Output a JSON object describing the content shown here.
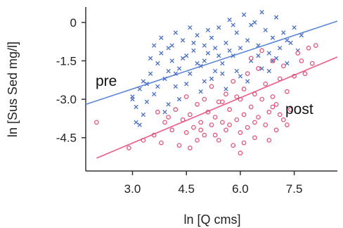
{
  "chart_data": {
    "type": "scatter",
    "title": "",
    "xlabel": "ln [Q  cms]",
    "ylabel": "ln [Sus Sed mg/l]",
    "xlim": [
      1.7,
      8.7
    ],
    "ylim": [
      -5.8,
      0.6
    ],
    "x_ticks": [
      3.0,
      4.5,
      6.0,
      7.5
    ],
    "x_tick_labels": [
      "3.0",
      "4.5",
      "6.0",
      "7.5"
    ],
    "y_ticks": [
      0,
      -1.5,
      -3.0,
      -4.5
    ],
    "y_tick_labels": [
      "0",
      "-1.5",
      "-3.0",
      "-4.5"
    ],
    "grid": false,
    "legend": "none",
    "series": [
      {
        "name": "pre",
        "marker": "x",
        "color": "#4a6fc4",
        "fit_line": {
          "color": "#5b86d6",
          "x": [
            1.7,
            8.7
          ],
          "y": [
            -3.2,
            0.05
          ]
        },
        "points": [
          [
            3.0,
            -2.9
          ],
          [
            3.1,
            -3.3
          ],
          [
            3.2,
            -2.6
          ],
          [
            3.3,
            -3.6
          ],
          [
            3.1,
            -3.9
          ],
          [
            3.2,
            -4.0
          ],
          [
            3.4,
            -3.1
          ],
          [
            3.3,
            -2.3
          ],
          [
            3.5,
            -2.0
          ],
          [
            3.0,
            -3.0
          ],
          [
            3.6,
            -2.8
          ],
          [
            3.7,
            -1.6
          ],
          [
            3.8,
            -1.2
          ],
          [
            3.6,
            -0.9
          ],
          [
            3.9,
            -2.2
          ],
          [
            4.0,
            -1.0
          ],
          [
            3.8,
            -0.6
          ],
          [
            4.1,
            -1.5
          ],
          [
            4.2,
            -2.5
          ],
          [
            4.0,
            -3.2
          ],
          [
            3.9,
            -3.5
          ],
          [
            4.3,
            -1.8
          ],
          [
            4.4,
            -0.7
          ],
          [
            4.5,
            -1.3
          ],
          [
            4.2,
            -0.4
          ],
          [
            4.6,
            -2.0
          ],
          [
            4.7,
            -1.1
          ],
          [
            4.8,
            -0.5
          ],
          [
            4.5,
            -2.4
          ],
          [
            4.9,
            -1.7
          ],
          [
            5.0,
            -0.9
          ],
          [
            5.1,
            -0.3
          ],
          [
            5.0,
            -1.5
          ],
          [
            5.2,
            -2.2
          ],
          [
            5.3,
            -1.0
          ],
          [
            5.4,
            -0.2
          ],
          [
            5.2,
            -0.6
          ],
          [
            5.5,
            -1.6
          ],
          [
            5.6,
            -0.8
          ],
          [
            5.7,
            0.1
          ],
          [
            5.5,
            -2.0
          ],
          [
            5.8,
            -1.3
          ],
          [
            5.9,
            -0.4
          ],
          [
            6.0,
            -1.0
          ],
          [
            6.1,
            0.3
          ],
          [
            5.9,
            -1.9
          ],
          [
            6.2,
            -0.7
          ],
          [
            6.3,
            -1.5
          ],
          [
            6.4,
            0.0
          ],
          [
            6.5,
            -0.9
          ],
          [
            6.6,
            -1.8
          ],
          [
            6.7,
            -0.3
          ],
          [
            6.8,
            -1.2
          ],
          [
            6.9,
            -0.6
          ],
          [
            7.0,
            0.2
          ],
          [
            7.1,
            -1.0
          ],
          [
            7.2,
            -0.4
          ],
          [
            7.3,
            -1.6
          ],
          [
            7.4,
            -0.8
          ],
          [
            7.5,
            -0.2
          ],
          [
            7.6,
            -1.1
          ],
          [
            7.7,
            -0.5
          ],
          [
            6.2,
            -2.3
          ],
          [
            5.6,
            -2.6
          ],
          [
            4.9,
            -2.7
          ],
          [
            4.3,
            -3.0
          ],
          [
            3.5,
            -1.4
          ],
          [
            4.1,
            -0.9
          ],
          [
            4.6,
            -0.2
          ],
          [
            5.3,
            -1.9
          ],
          [
            6.0,
            -2.1
          ],
          [
            6.8,
            -1.9
          ],
          [
            7.0,
            -1.4
          ],
          [
            5.1,
            -1.2
          ],
          [
            4.4,
            -1.4
          ],
          [
            3.7,
            -2.5
          ],
          [
            5.8,
            -0.1
          ],
          [
            6.6,
            0.4
          ],
          [
            6.3,
            -0.1
          ],
          [
            5.4,
            -1.3
          ],
          [
            4.8,
            -1.6
          ],
          [
            4.2,
            -2.0
          ],
          [
            3.4,
            -2.4
          ],
          [
            6.9,
            -1.5
          ],
          [
            7.3,
            -0.7
          ],
          [
            5.7,
            -1.1
          ],
          [
            4.0,
            -1.9
          ],
          [
            5.0,
            -2.3
          ],
          [
            6.5,
            -1.3
          ],
          [
            4.7,
            -0.8
          ]
        ]
      },
      {
        "name": "post",
        "marker": "o",
        "color": "#e0557a",
        "fit_line": {
          "color": "#ea5d86",
          "x": [
            2.0,
            8.7
          ],
          "y": [
            -5.3,
            -1.35
          ]
        },
        "points": [
          [
            2.0,
            -3.9
          ],
          [
            2.9,
            -4.9
          ],
          [
            3.3,
            -4.6
          ],
          [
            3.6,
            -4.4
          ],
          [
            3.7,
            -3.5
          ],
          [
            3.9,
            -3.9
          ],
          [
            3.8,
            -4.7
          ],
          [
            4.0,
            -3.7
          ],
          [
            4.1,
            -4.2
          ],
          [
            4.2,
            -3.4
          ],
          [
            4.3,
            -4.8
          ],
          [
            4.4,
            -3.8
          ],
          [
            4.5,
            -4.3
          ],
          [
            4.5,
            -2.9
          ],
          [
            4.6,
            -3.6
          ],
          [
            4.7,
            -4.1
          ],
          [
            4.8,
            -3.2
          ],
          [
            4.8,
            -4.6
          ],
          [
            4.9,
            -3.9
          ],
          [
            5.0,
            -4.4
          ],
          [
            5.0,
            -3.0
          ],
          [
            5.1,
            -3.5
          ],
          [
            5.2,
            -4.0
          ],
          [
            5.2,
            -2.5
          ],
          [
            5.3,
            -3.7
          ],
          [
            5.4,
            -4.6
          ],
          [
            5.4,
            -3.1
          ],
          [
            5.5,
            -3.9
          ],
          [
            5.6,
            -2.8
          ],
          [
            5.6,
            -4.2
          ],
          [
            5.7,
            -3.4
          ],
          [
            5.8,
            -4.8
          ],
          [
            5.8,
            -2.3
          ],
          [
            5.9,
            -3.8
          ],
          [
            6.0,
            -3.0
          ],
          [
            6.0,
            -4.3
          ],
          [
            6.1,
            -2.6
          ],
          [
            6.1,
            -3.6
          ],
          [
            6.2,
            -4.1
          ],
          [
            6.2,
            -2.0
          ],
          [
            6.3,
            -3.3
          ],
          [
            6.4,
            -2.8
          ],
          [
            6.4,
            -4.5
          ],
          [
            6.5,
            -3.7
          ],
          [
            6.5,
            -1.8
          ],
          [
            6.6,
            -3.0
          ],
          [
            6.7,
            -2.4
          ],
          [
            6.7,
            -4.0
          ],
          [
            6.8,
            -3.5
          ],
          [
            6.9,
            -1.5
          ],
          [
            6.9,
            -2.9
          ],
          [
            7.0,
            -4.2
          ],
          [
            7.0,
            -3.2
          ],
          [
            7.1,
            -2.2
          ],
          [
            7.2,
            -3.8
          ],
          [
            7.2,
            -1.7
          ],
          [
            7.3,
            -2.7
          ],
          [
            7.4,
            -3.4
          ],
          [
            7.5,
            -2.1
          ],
          [
            7.6,
            -1.2
          ],
          [
            7.7,
            -1.5
          ],
          [
            7.8,
            -2.0
          ],
          [
            7.9,
            -1.0
          ],
          [
            8.0,
            -1.6
          ],
          [
            8.1,
            -0.9
          ],
          [
            6.6,
            -1.1
          ],
          [
            6.3,
            -1.4
          ],
          [
            5.9,
            -2.9
          ],
          [
            5.5,
            -3.1
          ],
          [
            6.8,
            -4.6
          ],
          [
            6.0,
            -5.1
          ],
          [
            4.6,
            -4.9
          ],
          [
            5.3,
            -4.4
          ],
          [
            6.1,
            -4.7
          ],
          [
            7.1,
            -3.6
          ],
          [
            6.4,
            -3.9
          ],
          [
            5.7,
            -4.0
          ],
          [
            6.9,
            -3.3
          ],
          [
            7.3,
            -4.0
          ],
          [
            4.9,
            -4.2
          ]
        ]
      }
    ]
  }
}
